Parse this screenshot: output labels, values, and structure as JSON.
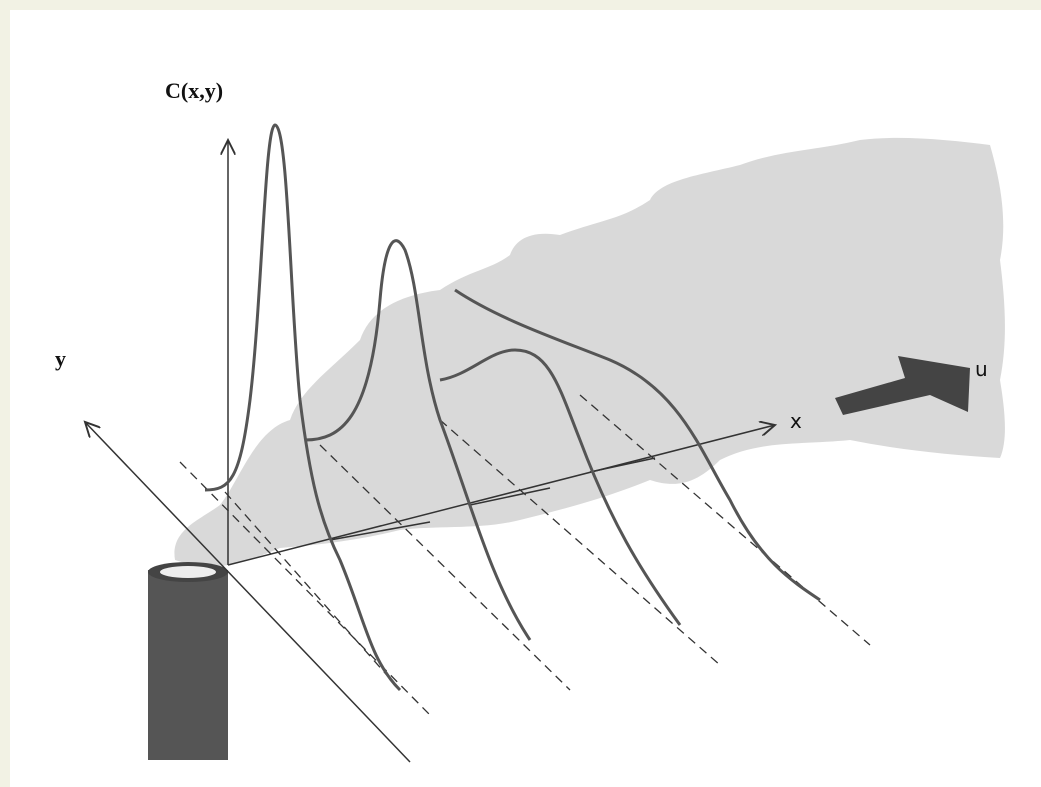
{
  "labels": {
    "concentration_axis": "C(x,y)",
    "y_axis": "y",
    "x_axis": "x",
    "wind": "u"
  }
}
